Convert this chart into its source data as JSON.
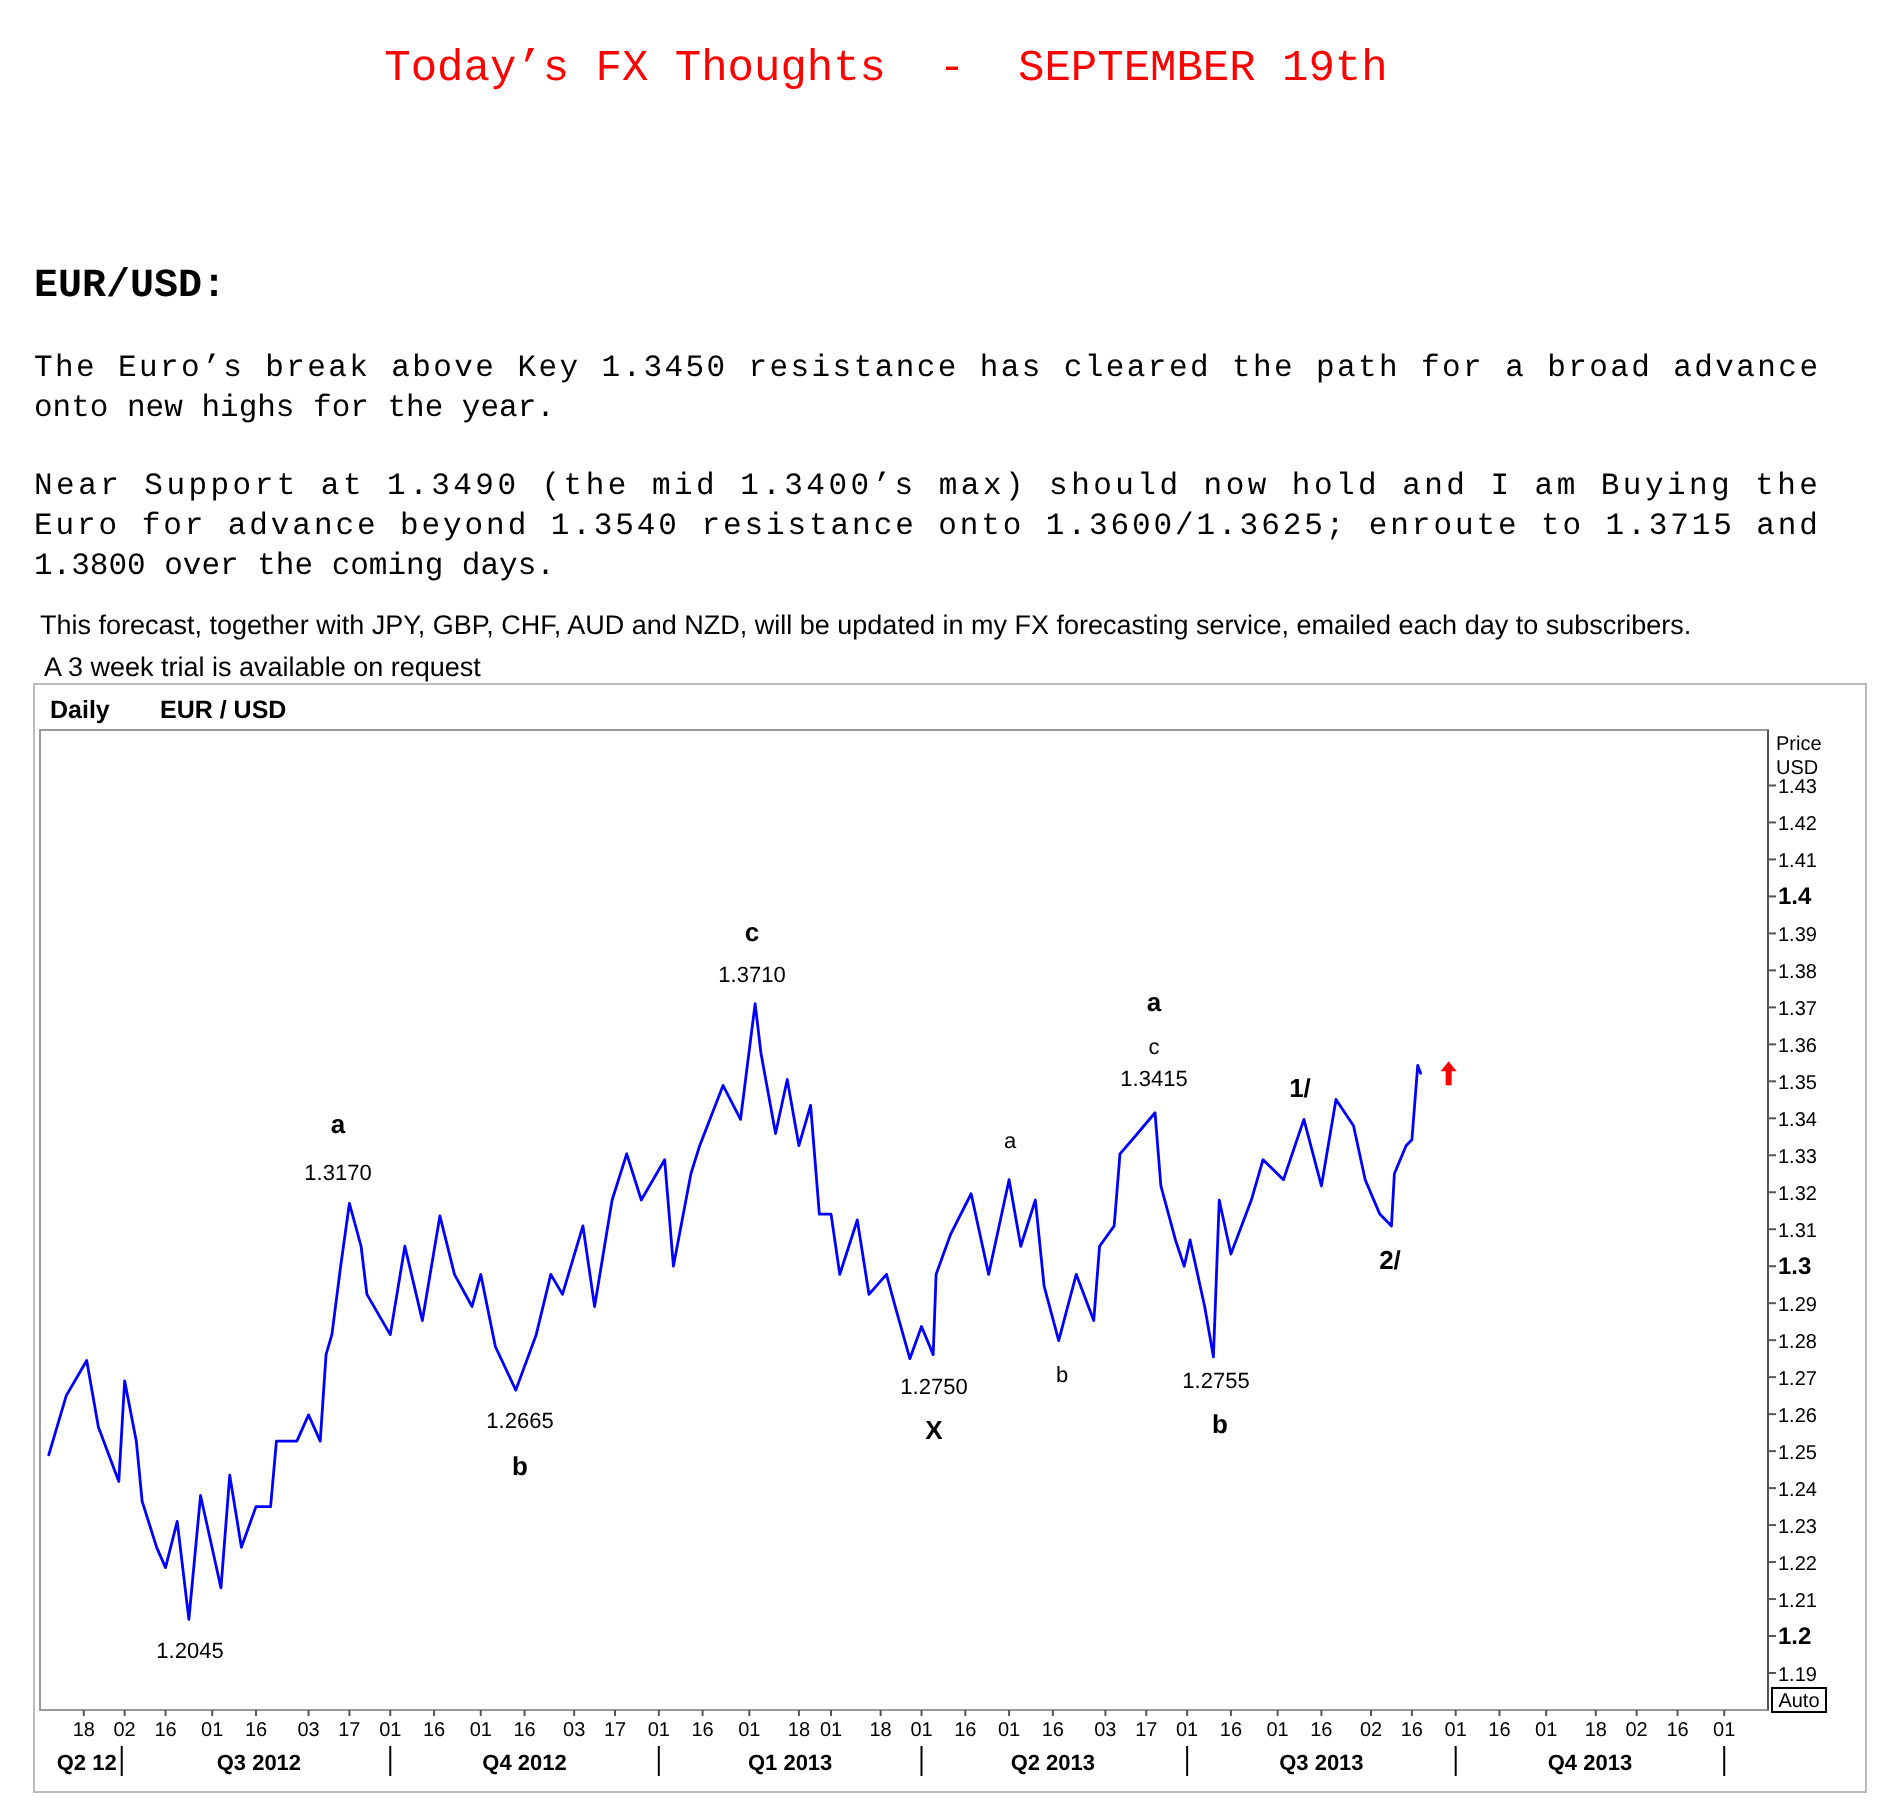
{
  "chart_data": {
    "type": "line",
    "title": "Today’s FX Thoughts  -  SEPTEMBER 19th",
    "subtitle": "EUR/USD:",
    "ylabel": "Price USD",
    "grid": false,
    "marker": "none",
    "line_style": "solid",
    "x": [
      "2012-06-06",
      "2012-06-12",
      "2012-06-19",
      "2012-06-23",
      "2012-06-30",
      "2012-07-02",
      "2012-07-06",
      "2012-07-08",
      "2012-07-13",
      "2012-07-16",
      "2012-07-20",
      "2012-07-24",
      "2012-07-28",
      "2012-08-04",
      "2012-08-07",
      "2012-08-11",
      "2012-08-16",
      "2012-08-21",
      "2012-08-23",
      "2012-08-30",
      "2012-09-03",
      "2012-09-07",
      "2012-09-09",
      "2012-09-11",
      "2012-09-14",
      "2012-09-17",
      "2012-09-21",
      "2012-09-23",
      "2012-10-01",
      "2012-10-06",
      "2012-10-12",
      "2012-10-18",
      "2012-10-23",
      "2012-10-29",
      "2012-11-01",
      "2012-11-06",
      "2012-11-13",
      "2012-11-20",
      "2012-11-25",
      "2012-11-29",
      "2012-12-06",
      "2012-12-10",
      "2012-12-16",
      "2012-12-21",
      "2012-12-26",
      "2013-01-03",
      "2013-01-06",
      "2013-01-12",
      "2013-01-15",
      "2013-01-23",
      "2013-01-29",
      "2013-02-03",
      "2013-02-05",
      "2013-02-10",
      "2013-02-14",
      "2013-02-18",
      "2013-02-22",
      "2013-02-25",
      "2013-03-01",
      "2013-03-04",
      "2013-03-10",
      "2013-03-14",
      "2013-03-20",
      "2013-03-23",
      "2013-03-28",
      "2013-04-01",
      "2013-04-05",
      "2013-04-06",
      "2013-04-11",
      "2013-04-18",
      "2013-04-24",
      "2013-05-01",
      "2013-05-05",
      "2013-05-10",
      "2013-05-13",
      "2013-05-18",
      "2013-05-24",
      "2013-05-30",
      "2013-06-01",
      "2013-06-06",
      "2013-06-08",
      "2013-06-14",
      "2013-06-20",
      "2013-06-22",
      "2013-06-27",
      "2013-06-30",
      "2013-07-02",
      "2013-07-07",
      "2013-07-10",
      "2013-07-12",
      "2013-07-16",
      "2013-07-23",
      "2013-07-27",
      "2013-08-03",
      "2013-08-10",
      "2013-08-16",
      "2013-08-21",
      "2013-08-27",
      "2013-08-31",
      "2013-09-05",
      "2013-09-09",
      "2013-09-10",
      "2013-09-14",
      "2013-09-16",
      "2013-09-18",
      "2013-09-19"
    ],
    "series": [
      {
        "color": "#0000ff",
        "values": [
          1.249,
          1.265,
          1.2745,
          1.2565,
          1.2418,
          1.269,
          1.2527,
          1.2364,
          1.2239,
          1.2185,
          1.231,
          1.2045,
          1.238,
          1.213,
          1.2435,
          1.224,
          1.235,
          1.235,
          1.2527,
          1.2527,
          1.2598,
          1.2527,
          1.2761,
          1.2815,
          1.3,
          1.317,
          1.3054,
          1.2924,
          1.2815,
          1.3054,
          1.2853,
          1.3136,
          1.2978,
          1.2891,
          1.2978,
          1.2783,
          1.2665,
          1.2815,
          1.2978,
          1.2924,
          1.3109,
          1.2891,
          1.3179,
          1.3304,
          1.3179,
          1.3288,
          1.3,
          1.325,
          1.3326,
          1.3489,
          1.3397,
          1.371,
          1.3576,
          1.3359,
          1.3505,
          1.3326,
          1.3435,
          1.3141,
          1.3141,
          1.2978,
          1.3125,
          1.2924,
          1.2978,
          1.2891,
          1.275,
          1.2837,
          1.2761,
          1.2978,
          1.3087,
          1.3196,
          1.2978,
          1.3234,
          1.3054,
          1.3179,
          1.2946,
          1.2799,
          1.2978,
          1.2853,
          1.3054,
          1.3109,
          1.3304,
          1.3359,
          1.3415,
          1.3217,
          1.3071,
          1.3,
          1.3071,
          1.2891,
          1.2755,
          1.3179,
          1.3033,
          1.3179,
          1.3288,
          1.3234,
          1.3397,
          1.3217,
          1.3451,
          1.338,
          1.3234,
          1.3141,
          1.3109,
          1.325,
          1.3326,
          1.3342,
          1.3543,
          1.3522
        ]
      }
    ],
    "xlim": [
      "2012-06-03",
      "2014-01-16"
    ],
    "xticks": [
      {
        "value": "2012-06-18",
        "label": "18"
      },
      {
        "value": "2012-07-02",
        "label": "02"
      },
      {
        "value": "2012-07-16",
        "label": "16"
      },
      {
        "value": "2012-08-01",
        "label": "01"
      },
      {
        "value": "2012-08-16",
        "label": "16"
      },
      {
        "value": "2012-09-03",
        "label": "03"
      },
      {
        "value": "2012-09-17",
        "label": "17"
      },
      {
        "value": "2012-10-01",
        "label": "01"
      },
      {
        "value": "2012-10-16",
        "label": "16"
      },
      {
        "value": "2012-11-01",
        "label": "01"
      },
      {
        "value": "2012-11-16",
        "label": "16"
      },
      {
        "value": "2012-12-03",
        "label": "03"
      },
      {
        "value": "2012-12-17",
        "label": "17"
      },
      {
        "value": "2013-01-01",
        "label": "01"
      },
      {
        "value": "2013-01-16",
        "label": "16"
      },
      {
        "value": "2013-02-01",
        "label": "01"
      },
      {
        "value": "2013-02-18",
        "label": "18"
      },
      {
        "value": "2013-03-01",
        "label": "01"
      },
      {
        "value": "2013-03-18",
        "label": "18"
      },
      {
        "value": "2013-04-01",
        "label": "01"
      },
      {
        "value": "2013-04-16",
        "label": "16"
      },
      {
        "value": "2013-05-01",
        "label": "01"
      },
      {
        "value": "2013-05-16",
        "label": "16"
      },
      {
        "value": "2013-06-03",
        "label": "03"
      },
      {
        "value": "2013-06-17",
        "label": "17"
      },
      {
        "value": "2013-07-01",
        "label": "01"
      },
      {
        "value": "2013-07-16",
        "label": "16"
      },
      {
        "value": "2013-08-01",
        "label": "01"
      },
      {
        "value": "2013-08-16",
        "label": "16"
      },
      {
        "value": "2013-09-02",
        "label": "02"
      },
      {
        "value": "2013-09-16",
        "label": "16"
      },
      {
        "value": "2013-10-01",
        "label": "01"
      },
      {
        "value": "2013-10-16",
        "label": "16"
      },
      {
        "value": "2013-11-01",
        "label": "01"
      },
      {
        "value": "2013-11-18",
        "label": "18"
      },
      {
        "value": "2013-12-02",
        "label": "02"
      },
      {
        "value": "2013-12-16",
        "label": "16"
      },
      {
        "value": "2014-01-01",
        "label": "01"
      }
    ],
    "x2lim": [
      "2012-06-03",
      "2014-01-16"
    ],
    "x2ticks": [
      {
        "value": "2012-06-19",
        "label": "Q2 12"
      },
      {
        "value": "2012-07-01",
        "label": null
      },
      {
        "value": "2012-08-17",
        "label": "Q3 2012"
      },
      {
        "value": "2012-10-01",
        "label": null
      },
      {
        "value": "2012-11-16",
        "label": "Q4 2012"
      },
      {
        "value": "2013-01-01",
        "label": null
      },
      {
        "value": "2013-02-15",
        "label": "Q1 2013"
      },
      {
        "value": "2013-04-01",
        "label": null
      },
      {
        "value": "2013-05-16",
        "label": "Q2 2013"
      },
      {
        "value": "2013-07-01",
        "label": null
      },
      {
        "value": "2013-08-16",
        "label": "Q3 2013"
      },
      {
        "value": "2013-10-01",
        "label": null
      },
      {
        "value": "2013-11-16",
        "label": "Q4 2013"
      },
      {
        "value": "2014-01-01",
        "label": null
      }
    ],
    "ylim": [
      1.18,
      1.445
    ],
    "yticks": [
      1.19,
      1.2,
      1.21,
      1.22,
      1.23,
      1.24,
      1.25,
      1.26,
      1.27,
      1.28,
      1.29,
      1.3,
      1.31,
      1.32,
      1.33,
      1.34,
      1.35,
      1.36,
      1.37,
      1.38,
      1.39,
      1.4,
      1.41,
      1.42,
      1.43
    ],
    "annotations": [
      "The Euro’s break above Key 1.3450 resistance has cleared the path for a broad advance onto new highs for the year.",
      "Near Support at 1.3490 (the mid 1.3400’s max) should now hold and I am Buying the Euro for advance beyond 1.3540 resistance onto 1.3600/1.3625; enroute to 1.3715 and 1.3800 over the coming days.",
      "This forecast, together with JPY, GBP, CHF, AUD and NZD, will be updated in my FX forecasting service, emailed each day to subscribers.",
      "A 3 week trial is available on request",
      "Daily",
      "EUR / USD",
      "Auto",
      "1.2045",
      "a",
      "1.3170",
      "1.2665",
      "b",
      "c",
      "1.3710",
      "1.2750",
      "X",
      "a",
      "b",
      "a",
      "c",
      "1.3415",
      "1.2755",
      "b",
      "1/",
      "2/"
    ]
  }
}
